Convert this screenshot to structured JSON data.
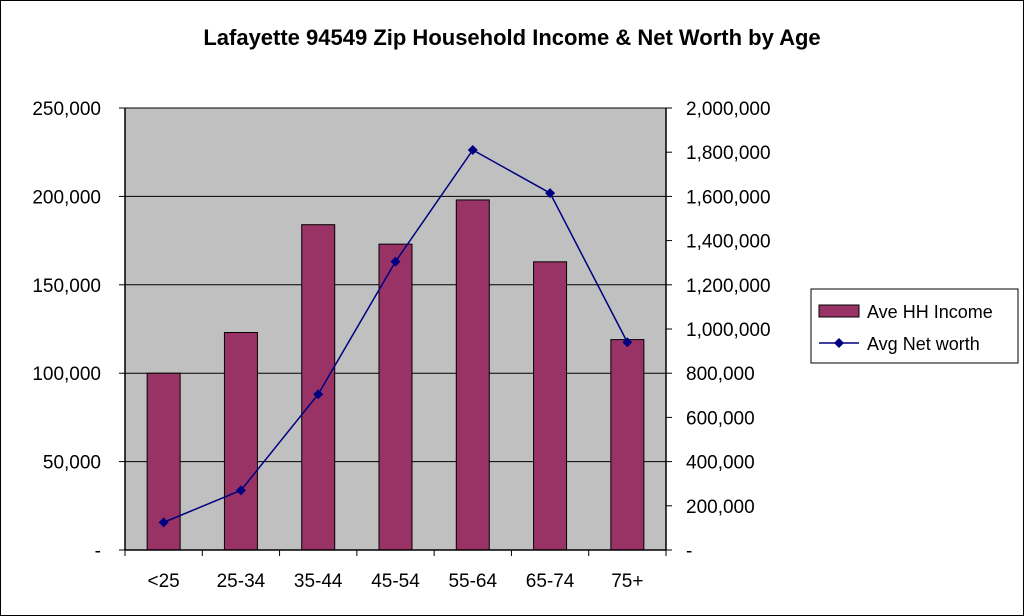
{
  "chart_data": {
    "type": "bar",
    "title": "Lafayette 94549 Zip Household Income & Net Worth by Age",
    "xlabel": "",
    "ylabel": "",
    "categories": [
      "<25",
      "25-34",
      "35-44",
      "45-54",
      "55-64",
      "65-74",
      "75+"
    ],
    "y_left": {
      "range": [
        0,
        250000
      ],
      "ticks": [
        0,
        50000,
        100000,
        150000,
        200000,
        250000
      ],
      "tick_labels": [
        "-",
        "50,000",
        "100,000",
        "150,000",
        "200,000",
        "250,000"
      ]
    },
    "y_right": {
      "range": [
        0,
        2000000
      ],
      "ticks": [
        0,
        200000,
        400000,
        600000,
        800000,
        1000000,
        1200000,
        1400000,
        1600000,
        1800000,
        2000000
      ],
      "tick_labels": [
        "-",
        "200,000",
        "400,000",
        "600,000",
        "800,000",
        "1,000,000",
        "1,200,000",
        "1,400,000",
        "1,600,000",
        "1,800,000",
        "2,000,000"
      ]
    },
    "series": [
      {
        "name": "Ave HH Income",
        "kind": "bar",
        "axis": "left",
        "color": "#993366",
        "values": [
          100000,
          123000,
          184000,
          173000,
          198000,
          163000,
          119000
        ]
      },
      {
        "name": "Avg Net worth",
        "kind": "line",
        "axis": "right",
        "color": "#000080",
        "marker": "diamond",
        "values": [
          125000,
          270000,
          705000,
          1305000,
          1810000,
          1615000,
          940000
        ]
      }
    ],
    "grid": true,
    "plot_background": "#c0c0c0",
    "legend_position": "right"
  }
}
